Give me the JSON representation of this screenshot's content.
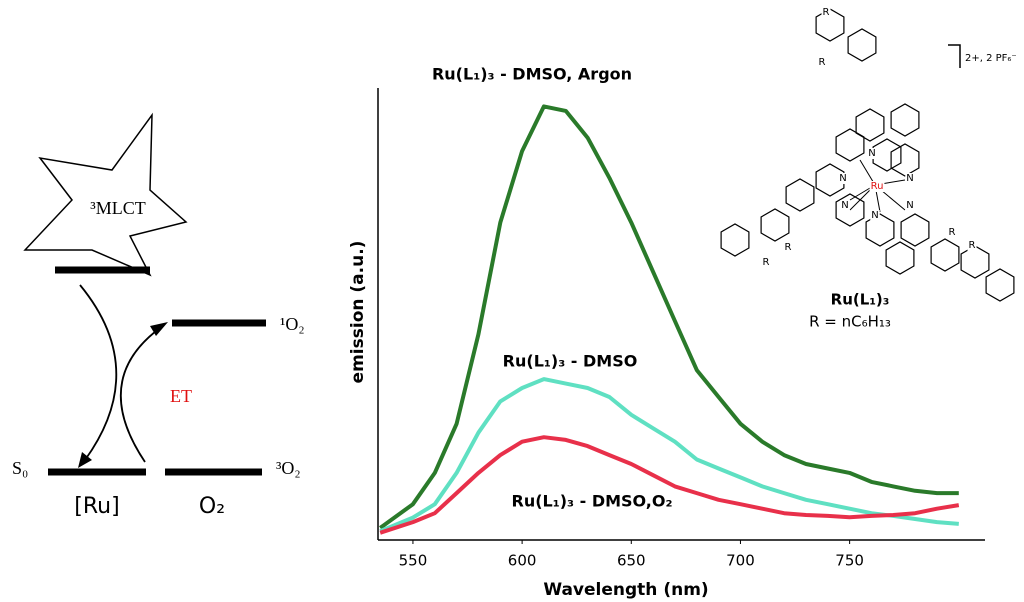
{
  "chart_data": {
    "type": "line",
    "x_label": "Wavelength  (nm)",
    "y_label": "emission  (a.u.)",
    "annotations": [
      "Ru(L₁)₃ - DMSO, Argon",
      "Ru(L₁)₃ - DMSO",
      "Ru(L₁)₃ - DMSO,O₂"
    ],
    "x": [
      535,
      550,
      560,
      570,
      580,
      590,
      600,
      610,
      620,
      630,
      640,
      650,
      660,
      670,
      680,
      690,
      700,
      710,
      720,
      730,
      740,
      750,
      760,
      770,
      780,
      790,
      800
    ],
    "series": [
      {
        "name": "Ru(L₁)₃ - DMSO, Argon",
        "color": "#2a7a2a",
        "values": [
          2.7,
          8,
          15,
          26,
          46,
          71,
          87,
          97,
          96,
          90,
          81,
          71,
          60,
          49,
          38,
          32,
          26,
          22,
          19,
          17,
          16,
          15,
          13,
          12,
          11,
          10.5,
          10.5
        ]
      },
      {
        "name": "Ru(L₁)₃ - DMSO",
        "color": "#5fe0c2",
        "values": [
          2,
          5,
          8,
          15,
          24,
          31,
          34,
          36,
          35,
          34,
          32,
          28,
          25,
          22,
          18,
          16,
          14,
          12,
          10.5,
          9,
          8,
          7,
          6,
          5.4,
          4.7,
          4,
          3.6
        ]
      },
      {
        "name": "Ru(L₁)₃ - DMSO,O₂",
        "color": "#e8304a",
        "values": [
          1.6,
          4,
          6,
          10.5,
          15,
          19,
          22,
          23,
          22.4,
          21,
          19,
          17,
          14.5,
          12,
          10.5,
          9,
          8,
          7,
          6,
          5.6,
          5.4,
          5.1,
          5.4,
          5.6,
          6,
          7,
          7.8
        ]
      }
    ],
    "xlim": [
      534,
      812
    ],
    "xticks": [
      550,
      600,
      650,
      700,
      750
    ],
    "ylim": [
      0,
      100
    ]
  },
  "diagram": {
    "state": "³MLCT",
    "singlet_oxygen": "¹O₂",
    "transfer": "ET",
    "ground": "S₀",
    "triplet_oxygen": "³O₂",
    "left_label": "[Ru]",
    "right_label": "O₂"
  },
  "structure": {
    "name": "Ru(L₁)₃",
    "substituent": "R = nC₆H₁₃",
    "charge": "2+, 2 PF₆⁻",
    "labels": [
      "Ru",
      "N",
      "N",
      "N",
      "N",
      "N",
      "N",
      "R",
      "R",
      "R",
      "R",
      "R",
      "R"
    ]
  }
}
